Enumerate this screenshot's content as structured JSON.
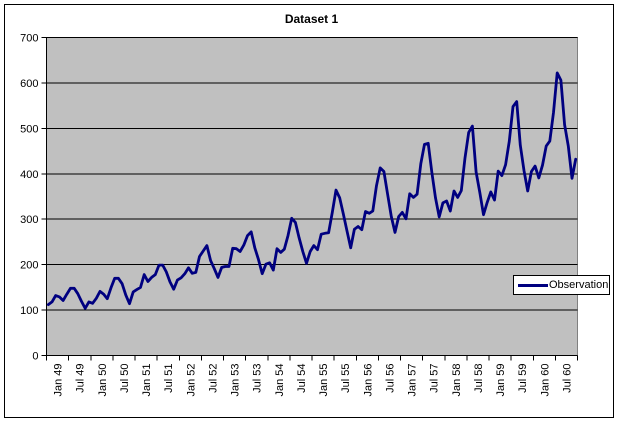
{
  "chart": {
    "title": "Dataset 1",
    "legend": {
      "items": [
        {
          "label": "Observation",
          "color": "#000080"
        }
      ]
    }
  },
  "chart_data": {
    "type": "line",
    "title": "Dataset 1",
    "x_tick_labels": [
      "Jan 49",
      "Jul 49",
      "Jan 50",
      "Jul 50",
      "Jan 51",
      "Jul 51",
      "Jan 52",
      "Jul 52",
      "Jan 53",
      "Jul 53",
      "Jan 54",
      "Jul 54",
      "Jan 55",
      "Jul 55",
      "Jan 56",
      "Jul 56",
      "Jan 57",
      "Jul 57",
      "Jan 58",
      "Jul 58",
      "Jan 59",
      "Jul 59",
      "Jan 60",
      "Jul 60"
    ],
    "x_frequency": "monthly",
    "y_ticks": [
      0,
      100,
      200,
      300,
      400,
      500,
      600,
      700
    ],
    "ylim": [
      0,
      700
    ],
    "grid": true,
    "legend_position": "middle-right",
    "plot_background": "#c0c0c0",
    "plot_border_color": "#808080",
    "gridline_color": "#000000",
    "axis_color": "#000000",
    "series": [
      {
        "name": "Observation",
        "color": "#000080",
        "values": [
          112,
          118,
          132,
          129,
          121,
          135,
          148,
          148,
          136,
          119,
          104,
          118,
          115,
          126,
          141,
          135,
          125,
          149,
          170,
          170,
          158,
          133,
          114,
          140,
          145,
          150,
          178,
          163,
          172,
          178,
          199,
          199,
          184,
          162,
          146,
          166,
          171,
          180,
          193,
          181,
          183,
          218,
          230,
          242,
          209,
          191,
          172,
          194,
          196,
          196,
          236,
          235,
          229,
          243,
          264,
          272,
          237,
          211,
          180,
          201,
          204,
          188,
          235,
          227,
          234,
          264,
          302,
          293,
          259,
          229,
          203,
          229,
          242,
          233,
          267,
          269,
          270,
          315,
          364,
          347,
          312,
          274,
          237,
          278,
          284,
          277,
          317,
          313,
          318,
          374,
          413,
          405,
          355,
          306,
          271,
          306,
          315,
          301,
          356,
          348,
          355,
          422,
          465,
          467,
          404,
          347,
          305,
          336,
          340,
          318,
          362,
          348,
          363,
          435,
          491,
          505,
          404,
          359,
          310,
          337,
          360,
          342,
          406,
          396,
          420,
          472,
          548,
          559,
          463,
          407,
          362,
          405,
          417,
          391,
          419,
          461,
          472,
          535,
          622,
          606,
          508,
          461,
          390,
          432
        ]
      }
    ]
  }
}
